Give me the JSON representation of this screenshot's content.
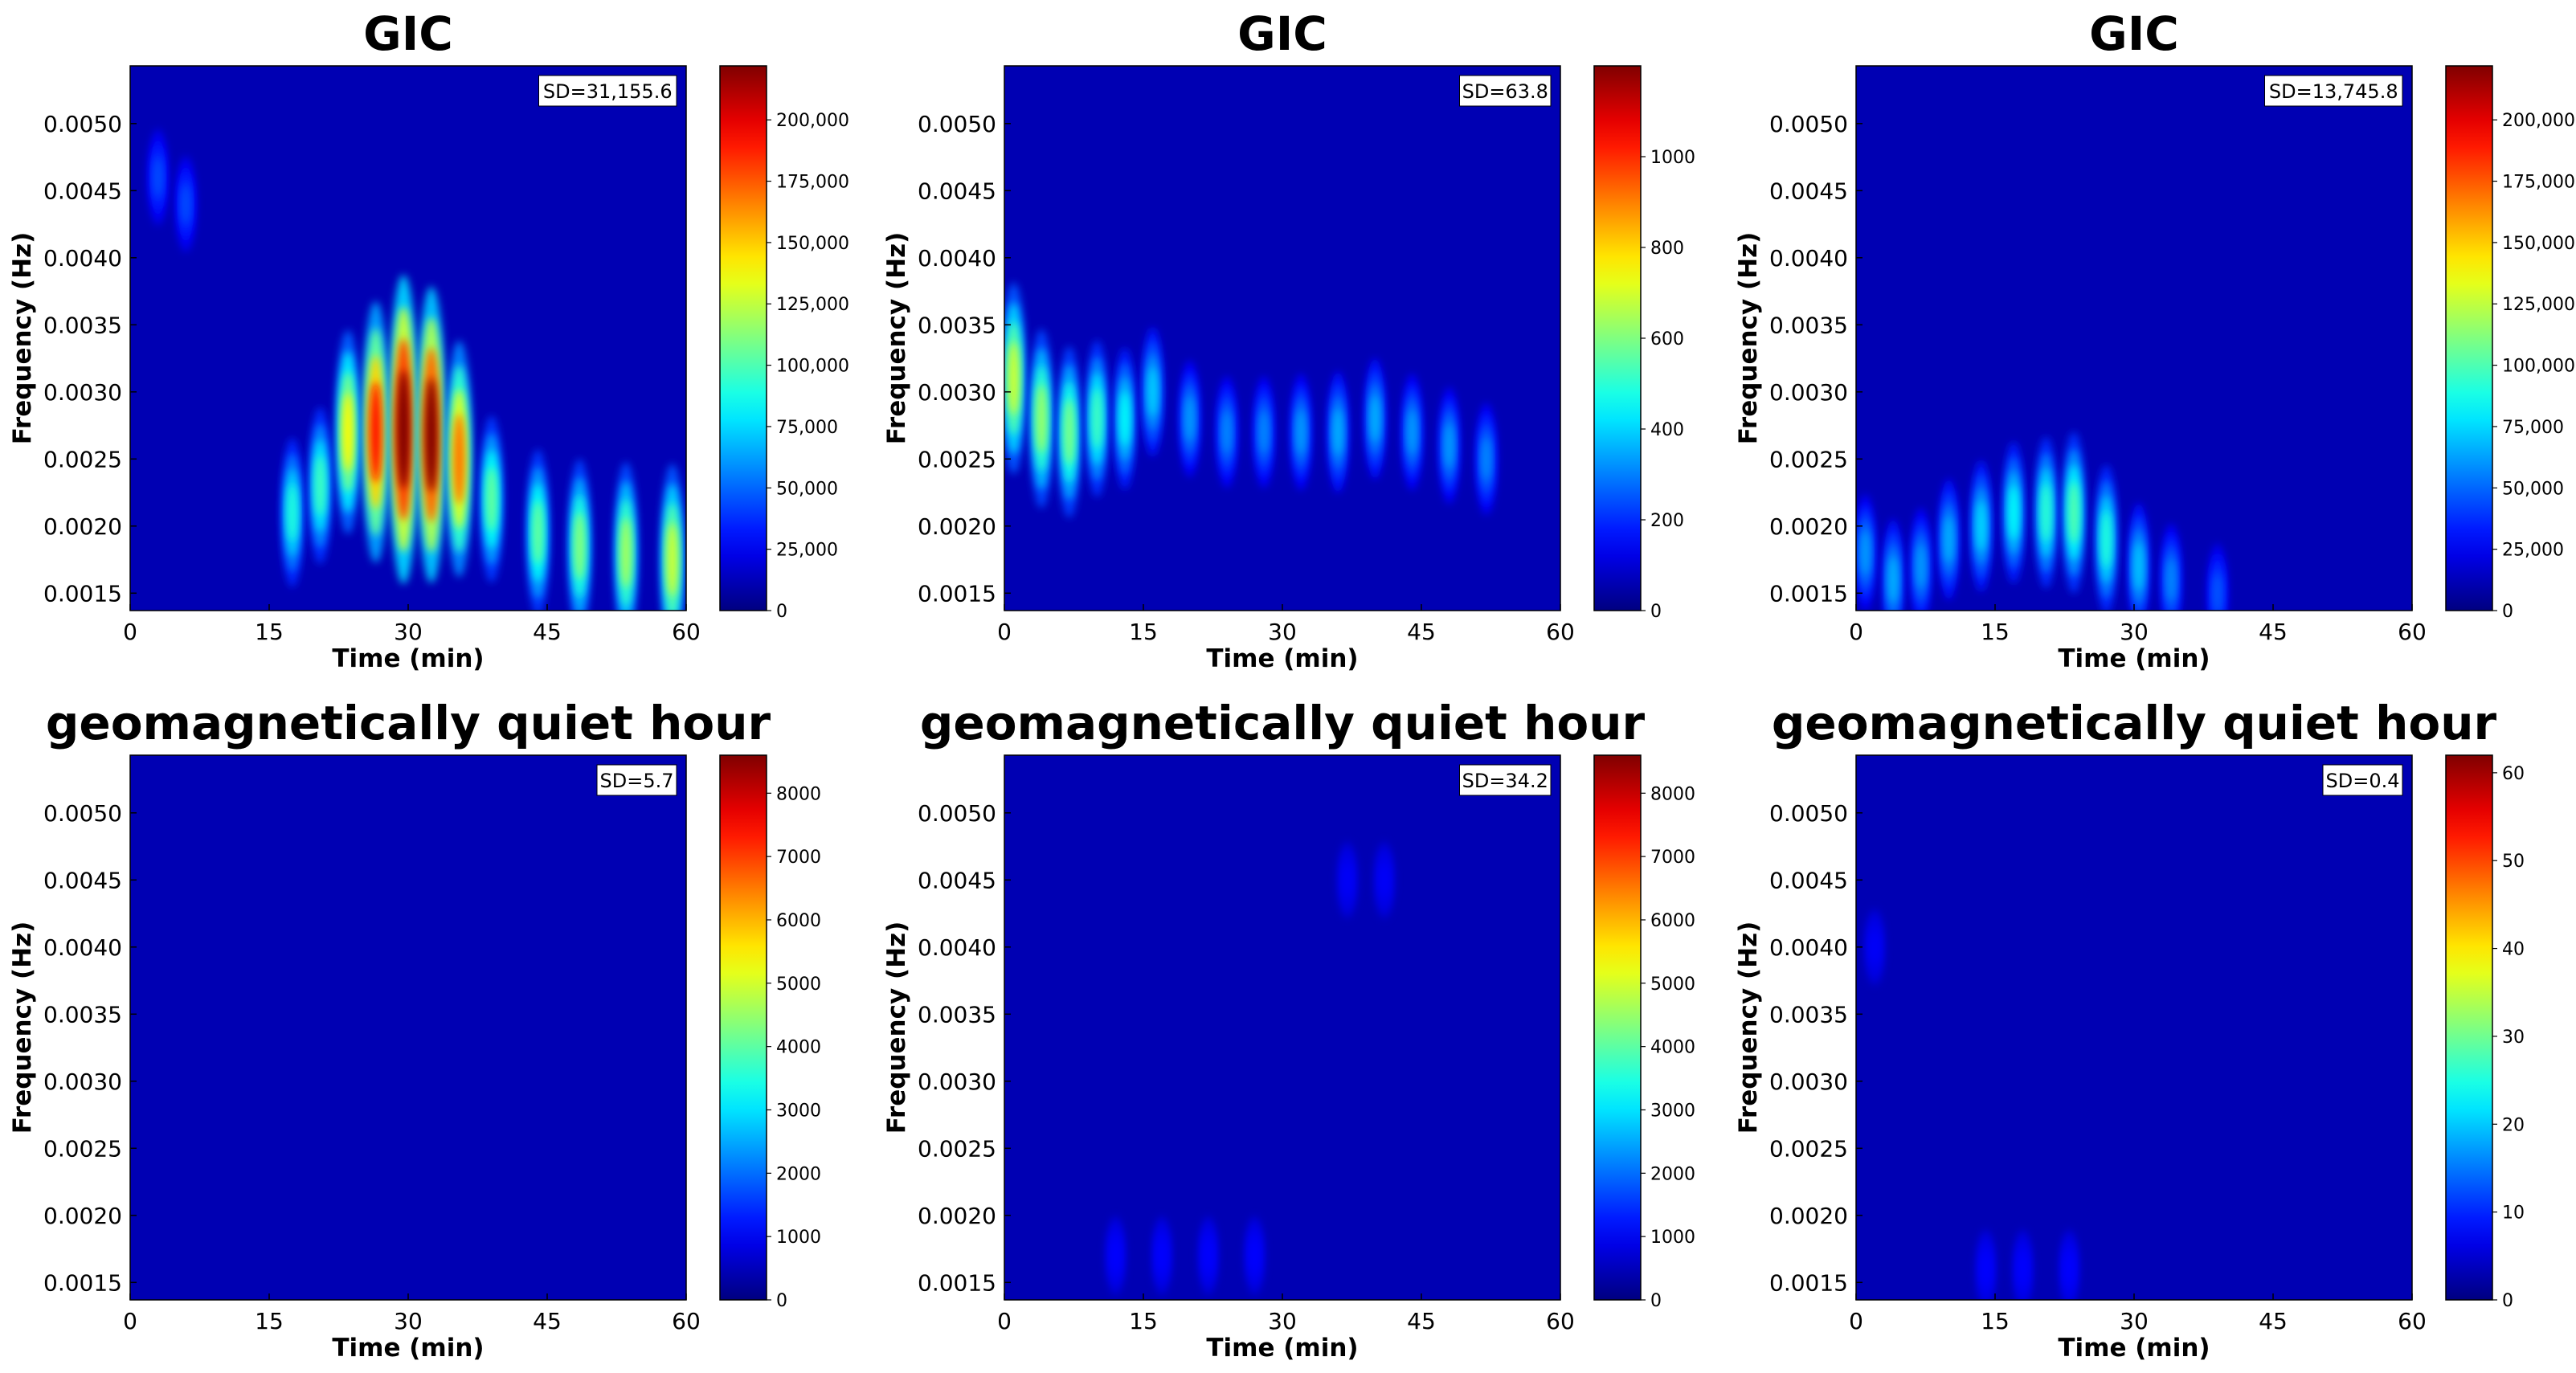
{
  "chart_data": [
    {
      "type": "heatmap",
      "title": "GIC",
      "xlabel": "Time (min)",
      "ylabel": "Frequency (Hz)",
      "xlim": [
        0,
        60
      ],
      "ylim": [
        0.00137,
        0.00543
      ],
      "x_ticks": [
        "0",
        "15",
        "30",
        "45",
        "60"
      ],
      "y_ticks": [
        "0.0015",
        "0.0020",
        "0.0025",
        "0.0030",
        "0.0035",
        "0.0040",
        "0.0045",
        "0.0050"
      ],
      "annotation": "SD=31,155.6",
      "colorbar": {
        "colormap": "jet",
        "range": [
          0,
          222000
        ],
        "ticks": [
          0,
          25000,
          50000,
          75000,
          100000,
          125000,
          150000,
          175000,
          200000
        ],
        "tick_labels": [
          "0",
          "25,000",
          "50,000",
          "75,000",
          "100,000",
          "125,000",
          "150,000",
          "175,000",
          "200,000"
        ]
      },
      "features": [
        {
          "t": 3,
          "f": 0.0046,
          "intensity": 0.12
        },
        {
          "t": 6,
          "f": 0.0044,
          "intensity": 0.12
        },
        {
          "t": 17.5,
          "f": 0.0021,
          "intensity": 0.33
        },
        {
          "t": 20.5,
          "f": 0.0023,
          "intensity": 0.36
        },
        {
          "t": 23.5,
          "f": 0.0027,
          "intensity": 0.55
        },
        {
          "t": 26.5,
          "f": 0.0027,
          "intensity": 0.78
        },
        {
          "t": 29.5,
          "f": 0.00272,
          "intensity": 0.97
        },
        {
          "t": 32.5,
          "f": 0.00268,
          "intensity": 0.92
        },
        {
          "t": 35.5,
          "f": 0.0025,
          "intensity": 0.68
        },
        {
          "t": 39,
          "f": 0.0022,
          "intensity": 0.4
        },
        {
          "t": 44,
          "f": 0.00195,
          "intensity": 0.4
        },
        {
          "t": 48.5,
          "f": 0.00185,
          "intensity": 0.43
        },
        {
          "t": 53.5,
          "f": 0.0018,
          "intensity": 0.46
        },
        {
          "t": 58.5,
          "f": 0.00175,
          "intensity": 0.5
        }
      ]
    },
    {
      "type": "heatmap",
      "title": "GIC",
      "xlabel": "Time (min)",
      "ylabel": "Frequency (Hz)",
      "xlim": [
        0,
        60
      ],
      "ylim": [
        0.00137,
        0.00543
      ],
      "x_ticks": [
        "0",
        "15",
        "30",
        "45",
        "60"
      ],
      "y_ticks": [
        "0.0015",
        "0.0020",
        "0.0025",
        "0.0030",
        "0.0035",
        "0.0040",
        "0.0045",
        "0.0050"
      ],
      "annotation": "SD=63.8",
      "colorbar": {
        "colormap": "jet",
        "range": [
          0,
          1200
        ],
        "ticks": [
          0,
          200,
          400,
          600,
          800,
          1000
        ],
        "tick_labels": [
          "0",
          "200",
          "400",
          "600",
          "800",
          "1000"
        ]
      },
      "features": [
        {
          "t": 1,
          "f": 0.0031,
          "intensity": 0.5
        },
        {
          "t": 4,
          "f": 0.0028,
          "intensity": 0.45
        },
        {
          "t": 7,
          "f": 0.0027,
          "intensity": 0.42
        },
        {
          "t": 10,
          "f": 0.0028,
          "intensity": 0.36
        },
        {
          "t": 13,
          "f": 0.0028,
          "intensity": 0.3
        },
        {
          "t": 16,
          "f": 0.003,
          "intensity": 0.25
        },
        {
          "t": 20,
          "f": 0.0028,
          "intensity": 0.2
        },
        {
          "t": 24,
          "f": 0.0027,
          "intensity": 0.18
        },
        {
          "t": 28,
          "f": 0.0027,
          "intensity": 0.18
        },
        {
          "t": 32,
          "f": 0.0027,
          "intensity": 0.2
        },
        {
          "t": 36,
          "f": 0.0027,
          "intensity": 0.22
        },
        {
          "t": 40,
          "f": 0.0028,
          "intensity": 0.22
        },
        {
          "t": 44,
          "f": 0.0027,
          "intensity": 0.2
        },
        {
          "t": 48,
          "f": 0.0026,
          "intensity": 0.2
        },
        {
          "t": 52,
          "f": 0.0025,
          "intensity": 0.18
        }
      ]
    },
    {
      "type": "heatmap",
      "title": "GIC",
      "xlabel": "Time (min)",
      "ylabel": "Frequency (Hz)",
      "xlim": [
        0,
        60
      ],
      "ylim": [
        0.00137,
        0.00543
      ],
      "x_ticks": [
        "0",
        "15",
        "30",
        "45",
        "60"
      ],
      "y_ticks": [
        "0.0015",
        "0.0020",
        "0.0025",
        "0.0030",
        "0.0035",
        "0.0040",
        "0.0045",
        "0.0050"
      ],
      "annotation": "SD=13,745.8",
      "colorbar": {
        "colormap": "jet",
        "range": [
          0,
          222000
        ],
        "ticks": [
          0,
          25000,
          50000,
          75000,
          100000,
          125000,
          150000,
          175000,
          200000
        ],
        "tick_labels": [
          "0",
          "25,000",
          "50,000",
          "75,000",
          "100,000",
          "125,000",
          "150,000",
          "175,000",
          "200,000"
        ]
      },
      "features": [
        {
          "t": 1,
          "f": 0.0018,
          "intensity": 0.2
        },
        {
          "t": 4,
          "f": 0.0016,
          "intensity": 0.22
        },
        {
          "t": 7,
          "f": 0.0017,
          "intensity": 0.2
        },
        {
          "t": 10,
          "f": 0.0019,
          "intensity": 0.22
        },
        {
          "t": 13.5,
          "f": 0.002,
          "intensity": 0.26
        },
        {
          "t": 17,
          "f": 0.0021,
          "intensity": 0.3
        },
        {
          "t": 20.5,
          "f": 0.0021,
          "intensity": 0.34
        },
        {
          "t": 23.5,
          "f": 0.0021,
          "intensity": 0.38
        },
        {
          "t": 27,
          "f": 0.0019,
          "intensity": 0.33
        },
        {
          "t": 30.5,
          "f": 0.0017,
          "intensity": 0.24
        },
        {
          "t": 34,
          "f": 0.0016,
          "intensity": 0.18
        },
        {
          "t": 39,
          "f": 0.0015,
          "intensity": 0.13
        }
      ]
    },
    {
      "type": "heatmap",
      "title": "geomagnetically quiet hour",
      "xlabel": "Time (min)",
      "ylabel": "Frequency (Hz)",
      "xlim": [
        0,
        60
      ],
      "ylim": [
        0.00137,
        0.00543
      ],
      "x_ticks": [
        "0",
        "15",
        "30",
        "45",
        "60"
      ],
      "y_ticks": [
        "0.0015",
        "0.0020",
        "0.0025",
        "0.0030",
        "0.0035",
        "0.0040",
        "0.0045",
        "0.0050"
      ],
      "annotation": "SD=5.7",
      "colorbar": {
        "colormap": "jet",
        "range": [
          0,
          8600
        ],
        "ticks": [
          0,
          1000,
          2000,
          3000,
          4000,
          5000,
          6000,
          7000,
          8000
        ],
        "tick_labels": [
          "0",
          "1000",
          "2000",
          "3000",
          "4000",
          "5000",
          "6000",
          "7000",
          "8000"
        ]
      },
      "features": []
    },
    {
      "type": "heatmap",
      "title": "geomagnetically quiet hour",
      "xlabel": "Time (min)",
      "ylabel": "Frequency (Hz)",
      "xlim": [
        0,
        60
      ],
      "ylim": [
        0.00137,
        0.00543
      ],
      "x_ticks": [
        "0",
        "15",
        "30",
        "45",
        "60"
      ],
      "y_ticks": [
        "0.0015",
        "0.0020",
        "0.0025",
        "0.0030",
        "0.0035",
        "0.0040",
        "0.0045",
        "0.0050"
      ],
      "annotation": "SD=34.2",
      "colorbar": {
        "colormap": "jet",
        "range": [
          0,
          8600
        ],
        "ticks": [
          0,
          1000,
          2000,
          3000,
          4000,
          5000,
          6000,
          7000,
          8000
        ],
        "tick_labels": [
          "0",
          "1000",
          "2000",
          "3000",
          "4000",
          "5000",
          "6000",
          "7000",
          "8000"
        ]
      },
      "features": [
        {
          "t": 12,
          "f": 0.0017,
          "intensity": 0.05
        },
        {
          "t": 17,
          "f": 0.0017,
          "intensity": 0.05
        },
        {
          "t": 22,
          "f": 0.0017,
          "intensity": 0.05
        },
        {
          "t": 27,
          "f": 0.0017,
          "intensity": 0.05
        },
        {
          "t": 37,
          "f": 0.0045,
          "intensity": 0.04
        },
        {
          "t": 41,
          "f": 0.0045,
          "intensity": 0.04
        }
      ]
    },
    {
      "type": "heatmap",
      "title": "geomagnetically quiet hour",
      "xlabel": "Time (min)",
      "ylabel": "Frequency (Hz)",
      "xlim": [
        0,
        60
      ],
      "ylim": [
        0.00137,
        0.00543
      ],
      "x_ticks": [
        "0",
        "15",
        "30",
        "45",
        "60"
      ],
      "y_ticks": [
        "0.0015",
        "0.0020",
        "0.0025",
        "0.0030",
        "0.0035",
        "0.0040",
        "0.0045",
        "0.0050"
      ],
      "annotation": "SD=0.4",
      "colorbar": {
        "colormap": "jet",
        "range": [
          0,
          62
        ],
        "ticks": [
          0,
          10,
          20,
          30,
          40,
          50,
          60
        ],
        "tick_labels": [
          "0",
          "10",
          "20",
          "30",
          "40",
          "50",
          "60"
        ]
      },
      "features": [
        {
          "t": 2,
          "f": 0.004,
          "intensity": 0.04
        },
        {
          "t": 14,
          "f": 0.0016,
          "intensity": 0.05
        },
        {
          "t": 18,
          "f": 0.0016,
          "intensity": 0.05
        },
        {
          "t": 23,
          "f": 0.0016,
          "intensity": 0.05
        }
      ]
    }
  ]
}
